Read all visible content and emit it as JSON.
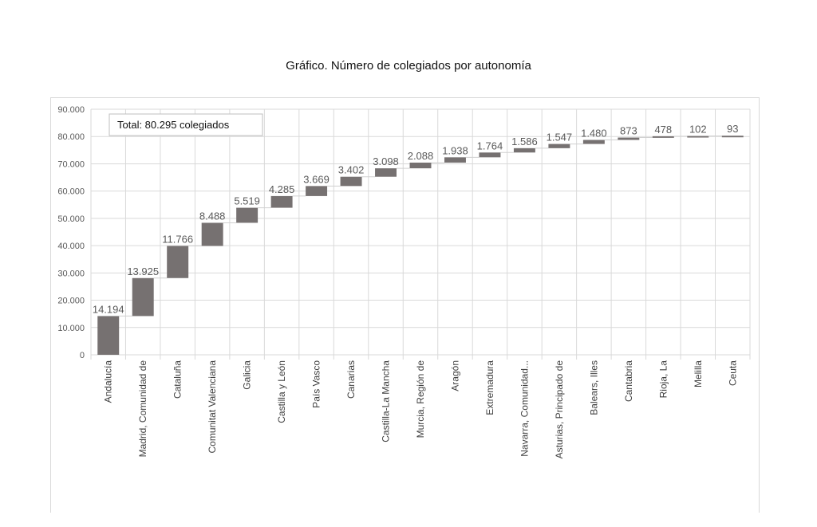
{
  "chart_data": {
    "type": "waterfall",
    "title": "Gráfico. Número de colegiados por autonomía",
    "annotation": "Total: 80.295 colegiados",
    "xlabel": "",
    "ylabel": "",
    "ylim": [
      0,
      90000
    ],
    "yticks": [
      0,
      10000,
      20000,
      30000,
      40000,
      50000,
      60000,
      70000,
      80000,
      90000
    ],
    "ytick_labels": [
      "0",
      "10.000",
      "20.000",
      "30.000",
      "40.000",
      "50.000",
      "60.000",
      "70.000",
      "80.000",
      "90.000"
    ],
    "grid": true,
    "categories": [
      "Andalucía",
      "Madrid, Comunidad de",
      "Cataluña",
      "Comunitat Valenciana",
      "Galicia",
      "Castilla y León",
      "País Vasco",
      "Canarias",
      "Castilla-La Mancha",
      "Murcia, Región de",
      "Aragón",
      "Extremadura",
      "Navarra, Comunidad...",
      "Asturias, Principado de",
      "Balears, Illes",
      "Cantabria",
      "Rioja, La",
      "Melilla",
      "Ceuta"
    ],
    "values": [
      14194,
      13925,
      11766,
      8488,
      5519,
      4285,
      3669,
      3402,
      3098,
      2088,
      1938,
      1764,
      1586,
      1547,
      1480,
      873,
      478,
      102,
      93
    ],
    "value_labels": [
      "14.194",
      "13.925",
      "11.766",
      "8.488",
      "5.519",
      "4.285",
      "3.669",
      "3.402",
      "3.098",
      "2.088",
      "1.938",
      "1.764",
      "1.586",
      "1.547",
      "1.480",
      "873",
      "478",
      "102",
      "93"
    ],
    "bar_color": "#767171"
  }
}
